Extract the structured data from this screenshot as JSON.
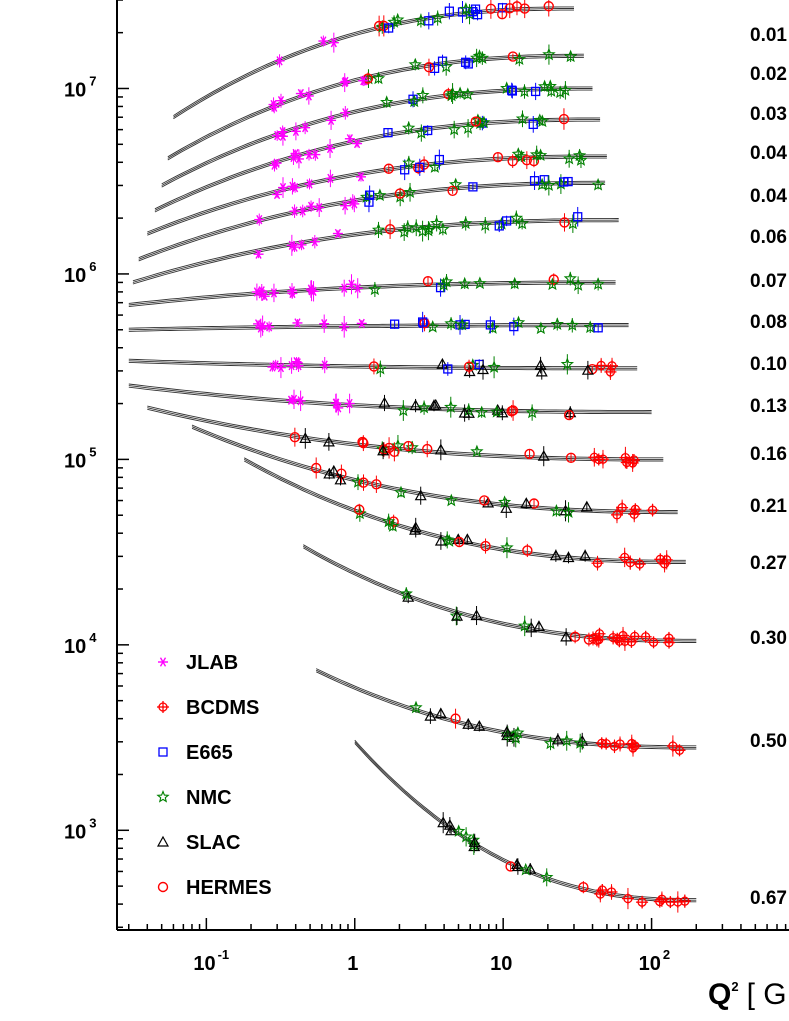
{
  "chart_data": {
    "type": "scatter",
    "x_scale": "log",
    "y_scale": "log",
    "xlim": [
      0.025,
      1000
    ],
    "ylim": [
      290,
      30000000
    ],
    "x_ticks": [
      {
        "value": 0.1,
        "base": "10",
        "exp": "-1"
      },
      {
        "value": 1,
        "base": "1",
        "exp": ""
      },
      {
        "value": 10,
        "base": "10",
        "exp": ""
      },
      {
        "value": 100,
        "base": "10",
        "exp": "2"
      }
    ],
    "y_ticks": [
      {
        "value": 1000,
        "base": "10",
        "exp": "3"
      },
      {
        "value": 10000,
        "base": "10",
        "exp": "4"
      },
      {
        "value": 100000,
        "base": "10",
        "exp": "5"
      },
      {
        "value": 1000000,
        "base": "10",
        "exp": "6"
      },
      {
        "value": 10000000,
        "base": "10",
        "exp": "7"
      }
    ],
    "xlabel": {
      "base": "Q",
      "exp": "2",
      "rest": "[ G"
    },
    "legend_position": "bottom-left",
    "legend": [
      {
        "name": "JLAB",
        "marker": "asterisk",
        "color": "#ff00ff"
      },
      {
        "name": "BCDMS",
        "marker": "circle-plus",
        "color": "#ff0000"
      },
      {
        "name": "E665",
        "marker": "square",
        "color": "#0000ff"
      },
      {
        "name": "NMC",
        "marker": "star",
        "color": "#008000"
      },
      {
        "name": "SLAC",
        "marker": "triangle",
        "color": "#000000"
      },
      {
        "name": "HERMES",
        "marker": "circle",
        "color": "#ff0000"
      }
    ],
    "bins": [
      {
        "label": "0.01",
        "x_start": 0.06,
        "x_end": 30,
        "y_start": 7000000,
        "y_end": 27000000
      },
      {
        "label": "0.02",
        "x_start": 0.055,
        "x_end": 35,
        "y_start": 4200000,
        "y_end": 15000000
      },
      {
        "label": "0.03",
        "x_start": 0.05,
        "x_end": 40,
        "y_start": 3000000,
        "y_end": 10000000
      },
      {
        "label": "0.04",
        "x_start": 0.045,
        "x_end": 45,
        "y_start": 2200000,
        "y_end": 6800000
      },
      {
        "label": "0.04",
        "x_start": 0.04,
        "x_end": 50,
        "y_start": 1650000,
        "y_end": 4300000
      },
      {
        "label": "0.06",
        "x_start": 0.035,
        "x_end": 55,
        "y_start": 1200000,
        "y_end": 3100000
      },
      {
        "label": "0.07",
        "x_start": 0.032,
        "x_end": 60,
        "y_start": 900000,
        "y_end": 1950000
      },
      {
        "label": "0.08",
        "x_start": 0.03,
        "x_end": 65,
        "y_start": 680000,
        "y_end": 900000
      },
      {
        "label": "0.10",
        "x_start": 0.03,
        "x_end": 70,
        "y_start": 500000,
        "y_end": 530000
      },
      {
        "label": "0.13",
        "x_start": 0.03,
        "x_end": 80,
        "y_start": 340000,
        "y_end": 310000
      },
      {
        "label": "0.16",
        "x_start": 0.03,
        "x_end": 100,
        "y_start": 250000,
        "y_end": 180000
      },
      {
        "label": "0.21",
        "x_start": 0.04,
        "x_end": 120,
        "y_start": 190000,
        "y_end": 100000
      },
      {
        "label": "0.27",
        "x_start": 0.08,
        "x_end": 150,
        "y_start": 150000,
        "y_end": 52000
      },
      {
        "label": "0.30",
        "x_start": 0.18,
        "x_end": 170,
        "y_start": 100000,
        "y_end": 28000
      },
      {
        "label": "",
        "x_start": 0.45,
        "x_end": 200,
        "y_start": 34000,
        "y_end": 10500
      },
      {
        "label": "0.50",
        "x_start": 0.55,
        "x_end": 200,
        "y_start": 7300,
        "y_end": 2800
      },
      {
        "label": "0.67",
        "x_start": 1.0,
        "x_end": 200,
        "y_start": 3000,
        "y_end": 420
      }
    ]
  }
}
